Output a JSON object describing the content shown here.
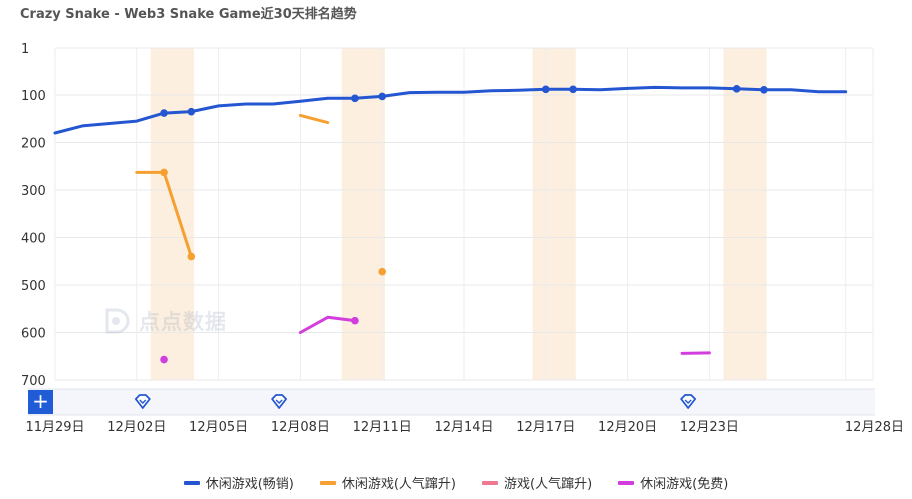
{
  "title": "Crazy Snake - Web3 Snake Game近30天排名趋势",
  "watermark": "点点数据",
  "add_button_label": "+",
  "colors": {
    "series_main": "#2456d2",
    "series_popular": "#f5a030",
    "series_games_popular": "#f07890",
    "series_free": "#d23ede",
    "highlight": "#fcefdf",
    "event_icon": "#2456d2"
  },
  "chart_data": {
    "type": "line",
    "title": "Crazy Snake - Web3 Snake Game近30天排名趋势",
    "y_reversed": true,
    "ylim": [
      1,
      700
    ],
    "y_ticks": [
      "1",
      "100",
      "200",
      "300",
      "400",
      "500",
      "600",
      "700"
    ],
    "xlim": [
      "2024-11-29",
      "2024-12-29"
    ],
    "x_tick_dates": [
      "2024-11-29",
      "2024-12-02",
      "2024-12-05",
      "2024-12-08",
      "2024-12-11",
      "2024-12-14",
      "2024-12-17",
      "2024-12-20",
      "2024-12-23",
      "2024-12-28"
    ],
    "x_tick_labels": [
      "11月29日",
      "12月02日",
      "12月05日",
      "12月08日",
      "12月11日",
      "12月14日",
      "12月17日",
      "12月20日",
      "12月23日",
      "12月28日"
    ],
    "highlight_ranges": [
      [
        "2024-12-02",
        "2024-12-03"
      ],
      [
        "2024-12-09",
        "2024-12-10"
      ],
      [
        "2024-12-16",
        "2024-12-17"
      ],
      [
        "2024-12-23",
        "2024-12-24"
      ]
    ],
    "event_markers": [
      "2024-12-02",
      "2024-12-07",
      "2024-12-22"
    ],
    "legend_position": "bottom",
    "grid": true,
    "series": [
      {
        "name": "休闲游戏(畅销)",
        "color": "#2456d2",
        "points": [
          [
            "2024-11-29",
            180
          ],
          [
            "2024-11-30",
            165
          ],
          [
            "2024-12-01",
            160
          ],
          [
            "2024-12-02",
            155
          ],
          [
            "2024-12-03",
            138
          ],
          [
            "2024-12-04",
            135
          ],
          [
            "2024-12-05",
            123
          ],
          [
            "2024-12-06",
            119
          ],
          [
            "2024-12-07",
            119
          ],
          [
            "2024-12-08",
            113
          ],
          [
            "2024-12-09",
            107
          ],
          [
            "2024-12-10",
            107
          ],
          [
            "2024-12-11",
            103
          ],
          [
            "2024-12-12",
            95
          ],
          [
            "2024-12-13",
            94
          ],
          [
            "2024-12-14",
            94
          ],
          [
            "2024-12-15",
            91
          ],
          [
            "2024-12-16",
            90
          ],
          [
            "2024-12-17",
            88
          ],
          [
            "2024-12-18",
            88
          ],
          [
            "2024-12-19",
            89
          ],
          [
            "2024-12-20",
            86
          ],
          [
            "2024-12-21",
            84
          ],
          [
            "2024-12-22",
            85
          ],
          [
            "2024-12-23",
            85
          ],
          [
            "2024-12-24",
            87
          ],
          [
            "2024-12-25",
            89
          ],
          [
            "2024-12-26",
            89
          ],
          [
            "2024-12-27",
            93
          ],
          [
            "2024-12-28",
            93
          ]
        ],
        "markers": [
          "2024-12-03",
          "2024-12-04",
          "2024-12-10",
          "2024-12-11",
          "2024-12-17",
          "2024-12-18",
          "2024-12-24",
          "2024-12-25"
        ]
      },
      {
        "name": "休闲游戏(人气蹿升)",
        "color": "#f5a030",
        "segments": [
          [
            [
              "2024-12-02",
              263
            ],
            [
              "2024-12-03",
              263
            ],
            [
              "2024-12-04",
              440
            ]
          ],
          [
            [
              "2024-12-08",
              143
            ],
            [
              "2024-12-09",
              158
            ]
          ],
          [
            [
              "2024-12-11",
              472
            ]
          ]
        ],
        "markers": [
          "2024-12-03",
          "2024-12-04",
          "2024-12-11"
        ]
      },
      {
        "name": "游戏(人气蹿升)",
        "color": "#f07890",
        "segments": [],
        "markers": []
      },
      {
        "name": "休闲游戏(免费)",
        "color": "#d23ede",
        "segments": [
          [
            [
              "2024-12-03",
              657
            ]
          ],
          [
            [
              "2024-12-08",
              600
            ],
            [
              "2024-12-09",
              568
            ],
            [
              "2024-12-10",
              575
            ]
          ],
          [
            [
              "2024-12-22",
              644
            ],
            [
              "2024-12-23",
              643
            ]
          ]
        ],
        "markers": [
          "2024-12-03",
          "2024-12-10"
        ]
      }
    ]
  }
}
